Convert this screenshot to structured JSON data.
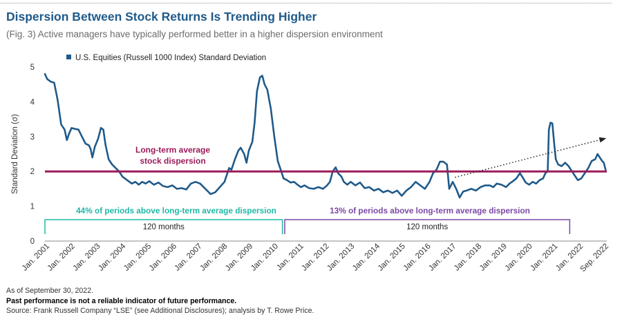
{
  "header": {
    "title": "Dispersion Between Stock Returns Is Trending Higher",
    "subtitle": "(Fig. 3) Active managers have typically performed better in a higher dispersion environment"
  },
  "colors": {
    "series": "#1f5a8a",
    "average_line": "#9b1b5a",
    "teal_bracket": "#1fb8a6",
    "purple_bracket": "#7a49a5",
    "trend_arrow": "#222222"
  },
  "chart_data": {
    "type": "line",
    "title": "Dispersion Between Stock Returns Is Trending Higher",
    "subtitle": "(Fig. 3) Active managers have typically performed better in a higher dispersion environment",
    "ylabel": "Standard Deviation (σ)",
    "ylim": [
      0,
      5
    ],
    "yticks": [
      "0",
      "1",
      "2",
      "3",
      "4",
      "5"
    ],
    "xlim": [
      "Jan. 2001",
      "Sep. 2022"
    ],
    "xtick_labels": [
      "Jan. 2001",
      "Jan. 2002",
      "Jan. 2003",
      "Jan. 2004",
      "Jan. 2005",
      "Jan. 2006",
      "Jan. 2007",
      "Jan. 2008",
      "Jan. 2009",
      "Jan. 2010",
      "Jan. 2011",
      "Jan. 2012",
      "Jan. 2013",
      "Jan. 2014",
      "Jan. 2015",
      "Jan. 2016",
      "Jan. 2017",
      "Jan. 2018",
      "Jan. 2019",
      "Jan. 2020",
      "Jan. 2021",
      "Jan. 2022",
      "Sep. 2022"
    ],
    "grid": false,
    "legend": "top-left",
    "series": [
      {
        "name": "U.S. Equities (Russell 1000 Index) Standard Deviation",
        "points": [
          [
            2001.0,
            4.8
          ],
          [
            2001.1,
            4.65
          ],
          [
            2001.25,
            4.58
          ],
          [
            2001.4,
            4.55
          ],
          [
            2001.55,
            4.05
          ],
          [
            2001.7,
            3.35
          ],
          [
            2001.85,
            3.2
          ],
          [
            2001.95,
            2.9
          ],
          [
            2002.05,
            3.1
          ],
          [
            2002.15,
            3.25
          ],
          [
            2002.3,
            3.22
          ],
          [
            2002.45,
            3.2
          ],
          [
            2002.6,
            3.0
          ],
          [
            2002.75,
            2.8
          ],
          [
            2002.9,
            2.75
          ],
          [
            2002.97,
            2.65
          ],
          [
            2003.05,
            2.4
          ],
          [
            2003.15,
            2.7
          ],
          [
            2003.3,
            2.95
          ],
          [
            2003.42,
            3.25
          ],
          [
            2003.52,
            3.2
          ],
          [
            2003.62,
            2.75
          ],
          [
            2003.75,
            2.35
          ],
          [
            2003.9,
            2.2
          ],
          [
            2004.05,
            2.1
          ],
          [
            2004.2,
            2.0
          ],
          [
            2004.35,
            1.85
          ],
          [
            2004.55,
            1.75
          ],
          [
            2004.75,
            1.65
          ],
          [
            2004.9,
            1.7
          ],
          [
            2005.05,
            1.62
          ],
          [
            2005.2,
            1.7
          ],
          [
            2005.35,
            1.65
          ],
          [
            2005.5,
            1.72
          ],
          [
            2005.7,
            1.62
          ],
          [
            2005.9,
            1.68
          ],
          [
            2006.1,
            1.58
          ],
          [
            2006.3,
            1.55
          ],
          [
            2006.5,
            1.6
          ],
          [
            2006.7,
            1.5
          ],
          [
            2006.9,
            1.52
          ],
          [
            2007.1,
            1.48
          ],
          [
            2007.3,
            1.65
          ],
          [
            2007.5,
            1.7
          ],
          [
            2007.7,
            1.65
          ],
          [
            2007.85,
            1.55
          ],
          [
            2008.0,
            1.45
          ],
          [
            2008.15,
            1.35
          ],
          [
            2008.35,
            1.4
          ],
          [
            2008.55,
            1.55
          ],
          [
            2008.75,
            1.7
          ],
          [
            2008.95,
            2.1
          ],
          [
            2009.05,
            2.05
          ],
          [
            2009.2,
            2.35
          ],
          [
            2009.35,
            2.6
          ],
          [
            2009.45,
            2.68
          ],
          [
            2009.6,
            2.5
          ],
          [
            2009.7,
            2.25
          ],
          [
            2009.8,
            2.6
          ],
          [
            2009.95,
            2.85
          ],
          [
            2010.05,
            3.4
          ],
          [
            2010.15,
            4.3
          ],
          [
            2010.28,
            4.7
          ],
          [
            2010.38,
            4.75
          ],
          [
            2010.48,
            4.5
          ],
          [
            2010.6,
            4.35
          ],
          [
            2010.75,
            3.8
          ],
          [
            2010.9,
            3.0
          ],
          [
            2011.05,
            2.3
          ],
          [
            2011.2,
            2.0
          ],
          [
            2011.3,
            1.8
          ],
          [
            2011.45,
            1.75
          ],
          [
            2011.6,
            1.68
          ],
          [
            2011.75,
            1.7
          ],
          [
            2011.9,
            1.62
          ],
          [
            2012.05,
            1.55
          ],
          [
            2012.2,
            1.6
          ],
          [
            2012.4,
            1.52
          ],
          [
            2012.6,
            1.5
          ],
          [
            2012.8,
            1.55
          ],
          [
            2013.0,
            1.5
          ],
          [
            2013.15,
            1.58
          ],
          [
            2013.3,
            1.7
          ],
          [
            2013.42,
            2.0
          ],
          [
            2013.55,
            2.12
          ],
          [
            2013.65,
            1.95
          ],
          [
            2013.8,
            1.85
          ],
          [
            2013.9,
            1.7
          ],
          [
            2014.05,
            1.62
          ],
          [
            2014.2,
            1.7
          ],
          [
            2014.4,
            1.6
          ],
          [
            2014.6,
            1.68
          ],
          [
            2014.8,
            1.52
          ],
          [
            2015.0,
            1.55
          ],
          [
            2015.2,
            1.45
          ],
          [
            2015.4,
            1.5
          ],
          [
            2015.6,
            1.4
          ],
          [
            2015.8,
            1.45
          ],
          [
            2016.0,
            1.38
          ],
          [
            2016.2,
            1.45
          ],
          [
            2016.4,
            1.3
          ],
          [
            2016.6,
            1.45
          ],
          [
            2016.8,
            1.55
          ],
          [
            2017.0,
            1.7
          ],
          [
            2017.2,
            1.6
          ],
          [
            2017.4,
            1.5
          ],
          [
            2017.6,
            1.7
          ],
          [
            2017.75,
            1.95
          ],
          [
            2017.9,
            2.05
          ],
          [
            2018.05,
            2.28
          ],
          [
            2018.2,
            2.28
          ],
          [
            2018.35,
            2.2
          ],
          [
            2018.45,
            1.5
          ],
          [
            2018.6,
            1.7
          ],
          [
            2018.75,
            1.5
          ],
          [
            2018.9,
            1.25
          ],
          [
            2019.05,
            1.42
          ],
          [
            2019.2,
            1.45
          ],
          [
            2019.4,
            1.5
          ],
          [
            2019.6,
            1.45
          ],
          [
            2019.8,
            1.55
          ],
          [
            2020.0,
            1.6
          ],
          [
            2020.2,
            1.6
          ],
          [
            2020.35,
            1.55
          ],
          [
            2020.5,
            1.65
          ],
          [
            2020.7,
            1.62
          ],
          [
            2020.9,
            1.55
          ],
          [
            2021.05,
            1.65
          ],
          [
            2021.2,
            1.72
          ],
          [
            2021.35,
            1.8
          ],
          [
            2021.5,
            1.95
          ],
          [
            2021.6,
            1.85
          ],
          [
            2021.75,
            1.68
          ],
          [
            2021.9,
            1.62
          ],
          [
            2022.05,
            1.7
          ],
          [
            2022.2,
            1.65
          ],
          [
            2022.35,
            1.75
          ],
          [
            2022.5,
            1.8
          ],
          [
            2022.6,
            1.95
          ],
          [
            2022.7,
            2.0
          ],
          [
            2022.75,
            3.2
          ],
          [
            2022.82,
            3.4
          ],
          [
            2022.9,
            3.38
          ],
          [
            2022.98,
            2.8
          ],
          [
            2023.05,
            2.35
          ],
          [
            2023.15,
            2.2
          ],
          [
            2023.3,
            2.15
          ],
          [
            2023.45,
            2.25
          ],
          [
            2023.6,
            2.15
          ],
          [
            2023.75,
            2.0
          ],
          [
            2023.9,
            1.85
          ],
          [
            2024.0,
            1.75
          ],
          [
            2024.15,
            1.8
          ],
          [
            2024.3,
            1.95
          ],
          [
            2024.45,
            2.1
          ],
          [
            2024.6,
            2.3
          ],
          [
            2024.75,
            2.35
          ],
          [
            2024.85,
            2.5
          ],
          [
            2024.95,
            2.4
          ],
          [
            2025.05,
            2.3
          ],
          [
            2025.12,
            2.25
          ],
          [
            2025.2,
            2.05
          ]
        ]
      }
    ],
    "reference_line": {
      "value": 2.0,
      "label_line1": "Long-term average",
      "label_line2": "stock dispersion"
    },
    "annotations": {
      "teal_bracket": {
        "start": 2001.0,
        "end": 2011.25,
        "text": "44% of periods above long-term average dispersion",
        "duration": "120 months"
      },
      "purple_bracket": {
        "start": 2011.35,
        "end": 2023.65,
        "text": "13% of periods above long-term average dispersion",
        "duration": "120 months"
      },
      "trend_arrow": {
        "from": [
          2018.7,
          1.83
        ],
        "to": [
          2025.2,
          2.95
        ]
      }
    }
  },
  "footer": {
    "as_of": "As of September 30, 2022.",
    "disclaimer": "Past performance is not a reliable indicator of future performance.",
    "source": "Source: Frank Russell Company “LSE” (see Additional Disclosures); analysis by T. Rowe Price."
  }
}
